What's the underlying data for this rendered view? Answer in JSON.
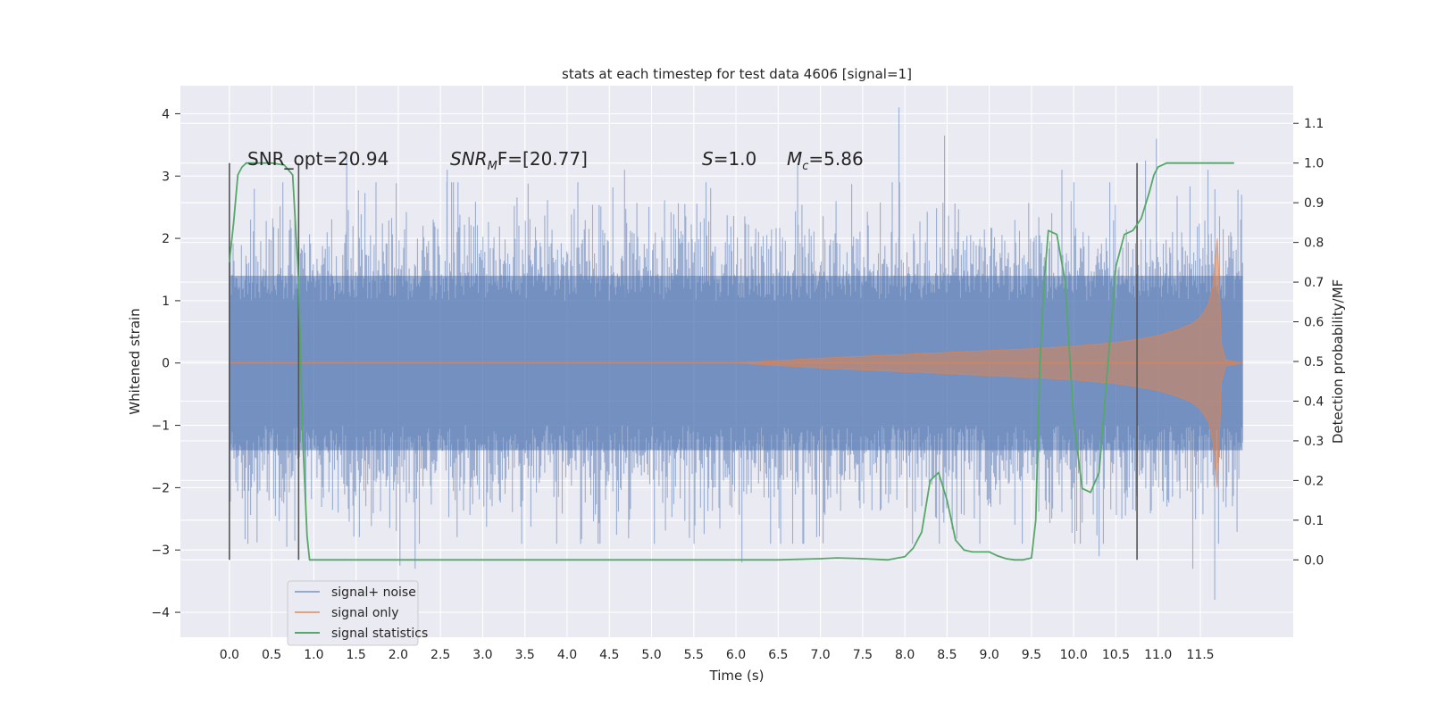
{
  "chart_data": {
    "type": "line",
    "title": "stats at each timestep for test data 4606 [signal=1]",
    "xlabel": "Time (s)",
    "ylabel_left": "Whitened strain",
    "ylabel_right": "Detection probability/MF",
    "xlim": [
      -0.58,
      12.6
    ],
    "ylim_left": [
      -4.4,
      4.45
    ],
    "ylim_right": [
      -0.195,
      1.195
    ],
    "x_ticks": [
      "0.0",
      "0.5",
      "1.0",
      "1.5",
      "2.0",
      "2.5",
      "3.0",
      "3.5",
      "4.0",
      "4.5",
      "5.0",
      "5.5",
      "6.0",
      "6.5",
      "7.0",
      "7.5",
      "8.0",
      "8.5",
      "9.0",
      "9.5",
      "10.0",
      "10.5",
      "11.0",
      "11.5"
    ],
    "y_left_ticks": [
      "4",
      "3",
      "2",
      "1",
      "0",
      "−1",
      "−2",
      "−3",
      "−4"
    ],
    "y_right_ticks": [
      "1.1",
      "1.0",
      "0.9",
      "0.8",
      "0.7",
      "0.6",
      "0.5",
      "0.4",
      "0.3",
      "0.2",
      "0.1",
      "0.0"
    ],
    "grid": true,
    "legend_placement": "lower-left",
    "annotations": {
      "snr_opt": "SNR_opt=20.94",
      "snr_mf_main": "SNR",
      "snr_mf_sub": "M",
      "snr_mf_rest": "F=[20.77]",
      "s_sym": "S",
      "s_val": "=1.0",
      "mc_sym": "M",
      "mc_sub": "c",
      "mc_val": "=5.86"
    },
    "markers_x": [
      0.0,
      0.82,
      10.75
    ],
    "series": [
      {
        "name": "signal+ noise",
        "color": "#4c72b0",
        "x_range": [
          0.0,
          12.0
        ],
        "envelope_typical": 1.4,
        "peaks": [
          [
            1.39,
            3.3
          ],
          [
            2.58,
            3.1
          ],
          [
            4.68,
            3.1
          ],
          [
            6.73,
            3.2
          ],
          [
            7.93,
            4.1
          ],
          [
            8.47,
            3.65
          ],
          [
            9.86,
            3.1
          ],
          [
            10.85,
            3.25
          ],
          [
            10.98,
            3.6
          ],
          [
            11.59,
            3.1
          ],
          [
            2.02,
            -3.25
          ],
          [
            2.2,
            -3.3
          ],
          [
            6.07,
            -3.2
          ],
          [
            11.41,
            -3.3
          ],
          [
            11.67,
            -3.8
          ],
          [
            10.3,
            -3.1
          ],
          [
            0.68,
            -2.95
          ]
        ]
      },
      {
        "name": "signal only",
        "color": "#dd8452",
        "x": [
          0.0,
          6.0,
          7.0,
          7.5,
          8.0,
          8.5,
          9.0,
          9.5,
          10.0,
          10.5,
          10.8,
          11.0,
          11.2,
          11.4,
          11.5,
          11.6,
          11.65,
          11.7,
          11.72,
          11.75,
          11.8,
          12.0
        ],
        "amplitude": [
          0.0,
          0.0,
          0.08,
          0.11,
          0.14,
          0.17,
          0.2,
          0.23,
          0.27,
          0.33,
          0.39,
          0.44,
          0.52,
          0.63,
          0.74,
          0.95,
          1.3,
          2.0,
          1.4,
          0.3,
          0.05,
          0.0
        ]
      },
      {
        "name": "signal statistics",
        "color": "#55a868",
        "axis": "right",
        "x": [
          0.0,
          0.05,
          0.1,
          0.15,
          0.2,
          0.3,
          0.5,
          0.65,
          0.75,
          0.82,
          0.87,
          0.92,
          0.95,
          1.0,
          1.5,
          2.0,
          4.0,
          6.0,
          6.5,
          7.0,
          7.2,
          7.5,
          7.8,
          8.0,
          8.1,
          8.2,
          8.3,
          8.4,
          8.5,
          8.6,
          8.7,
          8.8,
          8.9,
          9.0,
          9.1,
          9.2,
          9.3,
          9.4,
          9.5,
          9.55,
          9.6,
          9.65,
          9.7,
          9.8,
          9.9,
          10.0,
          10.1,
          10.2,
          10.3,
          10.4,
          10.5,
          10.6,
          10.7,
          10.8,
          10.9,
          10.95,
          11.0,
          11.1,
          11.5,
          11.9
        ],
        "y": [
          0.75,
          0.85,
          0.97,
          0.99,
          1.0,
          1.0,
          1.0,
          0.995,
          0.97,
          0.7,
          0.3,
          0.06,
          0.0,
          0.0,
          0.0,
          0.0,
          0.0,
          0.0,
          0.0,
          0.003,
          0.005,
          0.003,
          0.0,
          0.008,
          0.03,
          0.07,
          0.2,
          0.22,
          0.15,
          0.05,
          0.025,
          0.02,
          0.02,
          0.02,
          0.01,
          0.003,
          0.0,
          0.0,
          0.005,
          0.1,
          0.5,
          0.7,
          0.83,
          0.82,
          0.7,
          0.35,
          0.18,
          0.17,
          0.22,
          0.48,
          0.74,
          0.82,
          0.83,
          0.86,
          0.93,
          0.97,
          0.99,
          1.0,
          1.0,
          1.0
        ]
      }
    ]
  }
}
